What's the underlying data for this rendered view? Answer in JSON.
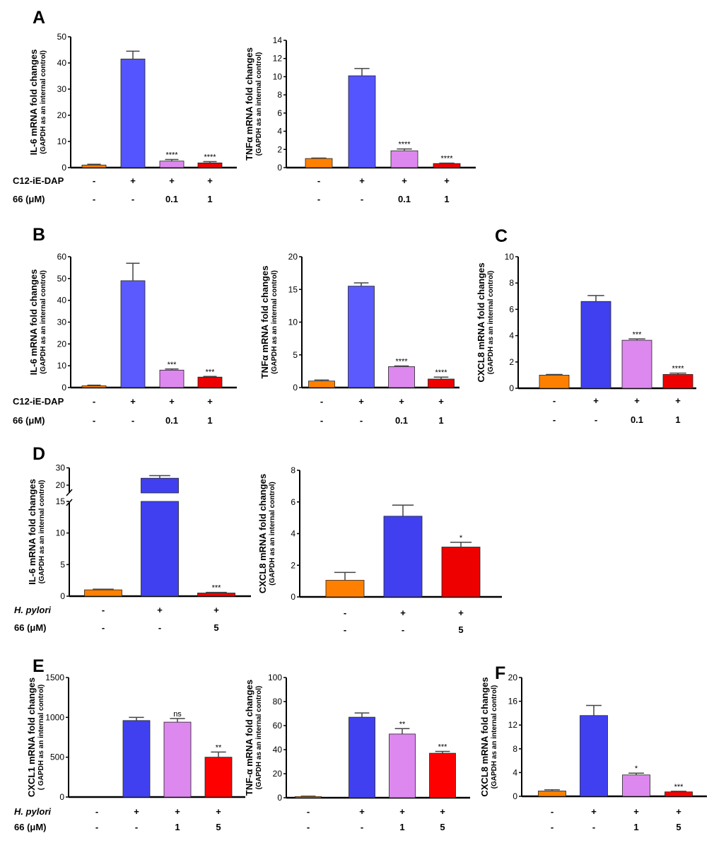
{
  "panels": [
    "A",
    "B",
    "C",
    "D",
    "E",
    "F"
  ],
  "chart_data": [
    {
      "id": "A1",
      "panel": "A",
      "type": "bar",
      "ylabel": [
        "IL-6 mRNA fold changes",
        "(GAPDH as an internal control)"
      ],
      "ylim": [
        0,
        50
      ],
      "yticks": [
        0,
        10,
        20,
        30,
        40,
        50
      ],
      "values": [
        1,
        41.5,
        2.5,
        1.8
      ],
      "errors": [
        0.3,
        3,
        0.6,
        0.5
      ],
      "sig": [
        "",
        "",
        "****",
        "****"
      ],
      "colors": [
        "#ff8000",
        "#5555ff",
        "#dd88ee",
        "#ee0000"
      ],
      "rows": [
        {
          "name": "C12-iE-DAP",
          "italic": false,
          "values": [
            "-",
            "+",
            "+",
            "+"
          ]
        },
        {
          "name": "66 (μM)",
          "italic": false,
          "values": [
            "-",
            "-",
            "0.1",
            "1"
          ]
        }
      ]
    },
    {
      "id": "A2",
      "panel": "A",
      "type": "bar",
      "ylabel": [
        "TNFα mRNA fold changes",
        "(GAPDH as an internal control)"
      ],
      "ylim": [
        0,
        14
      ],
      "yticks": [
        0,
        2,
        4,
        6,
        8,
        10,
        12,
        14
      ],
      "values": [
        1,
        10.1,
        1.85,
        0.45
      ],
      "errors": [
        0.05,
        0.8,
        0.2,
        0.05
      ],
      "sig": [
        "",
        "",
        "****",
        "****"
      ],
      "colors": [
        "#ff8000",
        "#5555ff",
        "#dd88ee",
        "#ee0000"
      ],
      "rows": [
        {
          "name": "",
          "values": [
            "-",
            "+",
            "+",
            "+"
          ]
        },
        {
          "name": "",
          "values": [
            "-",
            "-",
            "0.1",
            "1"
          ]
        }
      ]
    },
    {
      "id": "B1",
      "panel": "B",
      "type": "bar",
      "ylabel": [
        "IL-6 mRNA fold changes",
        "(GAPDH as an internal control)"
      ],
      "ylim": [
        0,
        60
      ],
      "yticks": [
        0,
        10,
        20,
        30,
        40,
        50,
        60
      ],
      "values": [
        0.8,
        49,
        8,
        4.8
      ],
      "errors": [
        0.3,
        8,
        0.5,
        0.3
      ],
      "sig": [
        "",
        "",
        "***",
        "***"
      ],
      "colors": [
        "#ff8000",
        "#5a5aff",
        "#dd88ee",
        "#ee0000"
      ],
      "rows": [
        {
          "name": "C12-iE-DAP",
          "italic": false,
          "values": [
            "-",
            "+",
            "+",
            "+"
          ]
        },
        {
          "name": "66 (μM)",
          "italic": false,
          "values": [
            "-",
            "-",
            "0.1",
            "1"
          ]
        }
      ]
    },
    {
      "id": "B2",
      "panel": "B",
      "type": "bar",
      "ylabel": [
        "TNFα mRNA fold changes",
        "(GAPDH as an internal control)"
      ],
      "ylim": [
        0,
        20
      ],
      "yticks": [
        0,
        5,
        10,
        15,
        20
      ],
      "values": [
        1,
        15.5,
        3.2,
        1.3
      ],
      "errors": [
        0.15,
        0.5,
        0.1,
        0.3
      ],
      "sig": [
        "",
        "",
        "****",
        "****"
      ],
      "colors": [
        "#ff8000",
        "#5a5aff",
        "#dd88ee",
        "#ee0000"
      ],
      "rows": [
        {
          "name": "",
          "values": [
            "-",
            "+",
            "+",
            "+"
          ]
        },
        {
          "name": "",
          "values": [
            "-",
            "-",
            "0.1",
            "1"
          ]
        }
      ]
    },
    {
      "id": "C1",
      "panel": "C",
      "type": "bar",
      "ylabel": [
        "CXCL8 mRNA fold changes",
        "(GAPDH as an internal control)"
      ],
      "ylim": [
        0,
        10
      ],
      "yticks": [
        0,
        2,
        4,
        6,
        8,
        10
      ],
      "values": [
        1,
        6.6,
        3.65,
        1.05
      ],
      "errors": [
        0.05,
        0.45,
        0.1,
        0.1
      ],
      "sig": [
        "",
        "",
        "***",
        "****"
      ],
      "colors": [
        "#ff8000",
        "#4040f0",
        "#dd88ee",
        "#ee0000"
      ],
      "rows": [
        {
          "name": "",
          "values": [
            "-",
            "+",
            "+",
            "+"
          ]
        },
        {
          "name": "",
          "values": [
            "-",
            "-",
            "0.1",
            "1"
          ]
        }
      ]
    },
    {
      "id": "D1",
      "panel": "D",
      "type": "bar",
      "ylabel": [
        "IL-6 mRNA fold changes",
        "(GAPDH as an internal control)"
      ],
      "ylim": [
        0,
        30
      ],
      "yticks": [
        0,
        5,
        10,
        15,
        20,
        30
      ],
      "axis_break": [
        15,
        18
      ],
      "values": [
        1,
        24,
        0.5
      ],
      "errors": [
        0.1,
        1.5,
        0.1
      ],
      "sig": [
        "",
        "",
        "***"
      ],
      "colors": [
        "#ff8000",
        "#4040f0",
        "#ee0000"
      ],
      "rows": [
        {
          "name": "H. pylori",
          "italic": true,
          "values": [
            "-",
            "+",
            "+"
          ]
        },
        {
          "name": "66 (μM)",
          "italic": false,
          "values": [
            "-",
            "-",
            "5"
          ]
        }
      ]
    },
    {
      "id": "D2",
      "panel": "D",
      "type": "bar",
      "ylabel": [
        "CXCL8 mRNA fold changes",
        "(GAPDH as an internal control)"
      ],
      "ylim": [
        0,
        8
      ],
      "yticks": [
        0,
        2,
        4,
        6,
        8
      ],
      "values": [
        1.05,
        5.1,
        3.15
      ],
      "errors": [
        0.5,
        0.7,
        0.3
      ],
      "sig": [
        "",
        "",
        "*"
      ],
      "colors": [
        "#ff8000",
        "#4040f0",
        "#ee0000"
      ],
      "rows": [
        {
          "name": "",
          "values": [
            "-",
            "+",
            "+"
          ]
        },
        {
          "name": "",
          "values": [
            "-",
            "-",
            "5"
          ]
        }
      ]
    },
    {
      "id": "E1",
      "panel": "E",
      "type": "bar",
      "ylabel": [
        "CXCL1 mRNA fold changes",
        "( GAPDH as an internal control)"
      ],
      "ylim": [
        0,
        1500
      ],
      "yticks": [
        0,
        500,
        1000,
        1500
      ],
      "values": [
        0,
        960,
        940,
        500
      ],
      "errors": [
        0,
        40,
        45,
        65
      ],
      "sig": [
        "",
        "",
        "ns",
        "**"
      ],
      "colors": [
        "#ff8000",
        "#4040f0",
        "#dd88ee",
        "#ff0000"
      ],
      "rows": [
        {
          "name": "H. pylori",
          "italic": true,
          "values": [
            "-",
            "+",
            "+",
            "+"
          ]
        },
        {
          "name": "66 (μM)",
          "italic": false,
          "values": [
            "-",
            "-",
            "1",
            "5"
          ]
        }
      ]
    },
    {
      "id": "E2",
      "panel": "E",
      "type": "bar",
      "ylabel": [
        "TNF-α mRNA fold changes",
        "(GAPDH as an internal control)"
      ],
      "ylim": [
        0,
        100
      ],
      "yticks": [
        0,
        20,
        40,
        60,
        80,
        100
      ],
      "values": [
        1,
        67,
        53,
        37
      ],
      "errors": [
        0.3,
        3.5,
        4.5,
        1.5
      ],
      "sig": [
        "",
        "",
        "**",
        "***"
      ],
      "colors": [
        "#ff8000",
        "#4040f0",
        "#dd88ee",
        "#ff0000"
      ],
      "rows": [
        {
          "name": "",
          "values": [
            "-",
            "+",
            "+",
            "+"
          ]
        },
        {
          "name": "",
          "values": [
            "-",
            "-",
            "1",
            "5"
          ]
        }
      ]
    },
    {
      "id": "F1",
      "panel": "F",
      "type": "bar",
      "ylabel": [
        "CXCL8 mRNA fold changes",
        "(GAPDH as an internal control)"
      ],
      "ylim": [
        0,
        20
      ],
      "yticks": [
        0,
        4,
        8,
        12,
        16,
        20
      ],
      "values": [
        0.9,
        13.6,
        3.6,
        0.75
      ],
      "errors": [
        0.2,
        1.7,
        0.3,
        0.1
      ],
      "sig": [
        "",
        "",
        "*",
        "***"
      ],
      "colors": [
        "#ff8000",
        "#4040f0",
        "#dd88ee",
        "#ff0000"
      ],
      "rows": [
        {
          "name": "",
          "values": [
            "-",
            "+",
            "+",
            "+"
          ]
        },
        {
          "name": "",
          "values": [
            "-",
            "-",
            "1",
            "5"
          ]
        }
      ]
    }
  ]
}
